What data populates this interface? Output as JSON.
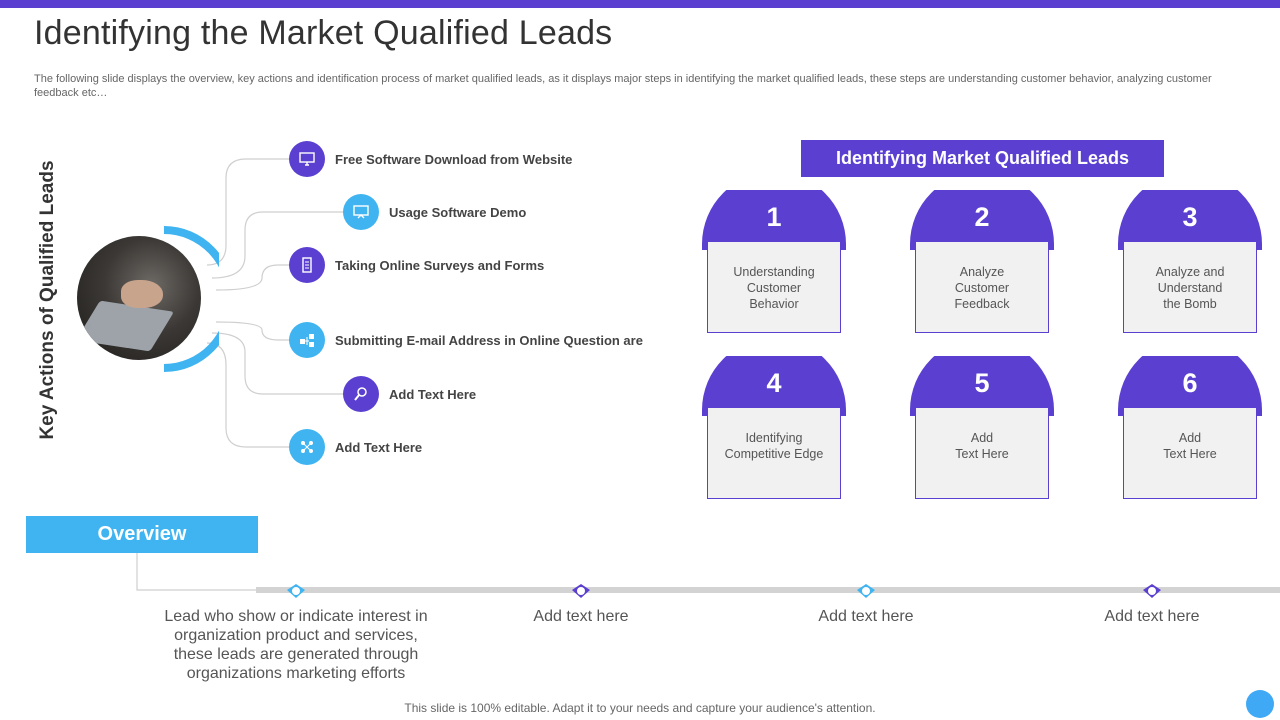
{
  "title": "Identifying the Market Qualified Leads",
  "subtitle": "The following slide displays the overview,  key actions and identification process of market qualified leads, as it displays major steps in identifying the market qualified leads, these steps are understanding customer behavior, analyzing customer feedback etc…",
  "key_actions": {
    "heading": "Key Actions of Qualified Leads",
    "items": [
      {
        "label": "Free Software Download from Website",
        "icon": "monitor-icon"
      },
      {
        "label": "Usage  Software Demo",
        "icon": "presentation-icon"
      },
      {
        "label": "Taking Online Surveys  and Forms",
        "icon": "document-icon"
      },
      {
        "label": "Submitting E-mail Address  in Online Question are",
        "icon": "network-icon"
      },
      {
        "label": "Add  Text Here",
        "icon": "magnifier-icon"
      },
      {
        "label": "Add  Text Here",
        "icon": "share-icon"
      }
    ]
  },
  "identifying": {
    "heading": "Identifying Market Qualified Leads",
    "steps": [
      {
        "num": "1",
        "line1": "Understanding",
        "line2": "Customer",
        "line3": "Behavior"
      },
      {
        "num": "2",
        "line1": "Analyze",
        "line2": "Customer",
        "line3": "Feedback"
      },
      {
        "num": "3",
        "line1": "Analyze and",
        "line2": "Understand",
        "line3": "the Bomb"
      },
      {
        "num": "4",
        "line1": "Identifying",
        "line2": "Competitive  Edge",
        "line3": ""
      },
      {
        "num": "5",
        "line1": "Add",
        "line2": "Text Here",
        "line3": ""
      },
      {
        "num": "6",
        "line1": "Add",
        "line2": "Text Here",
        "line3": ""
      }
    ]
  },
  "overview": {
    "heading": "Overview",
    "points": [
      {
        "line1": "Lead who show or indicate interest in",
        "line2": "organization product and services,",
        "line3": "these leads are generated through",
        "line4": "organizations marketing efforts"
      },
      {
        "line1": "Add text here",
        "line2": "",
        "line3": "",
        "line4": ""
      },
      {
        "line1": "Add text here",
        "line2": "",
        "line3": "",
        "line4": ""
      },
      {
        "line1": "Add text here",
        "line2": "",
        "line3": "",
        "line4": ""
      }
    ]
  },
  "footer": "This slide is 100% editable. Adapt it to your needs and capture your audience's attention.",
  "colors": {
    "purple": "#5b3fd0",
    "blue": "#3fb4f1",
    "box": "#f1f1f1"
  }
}
